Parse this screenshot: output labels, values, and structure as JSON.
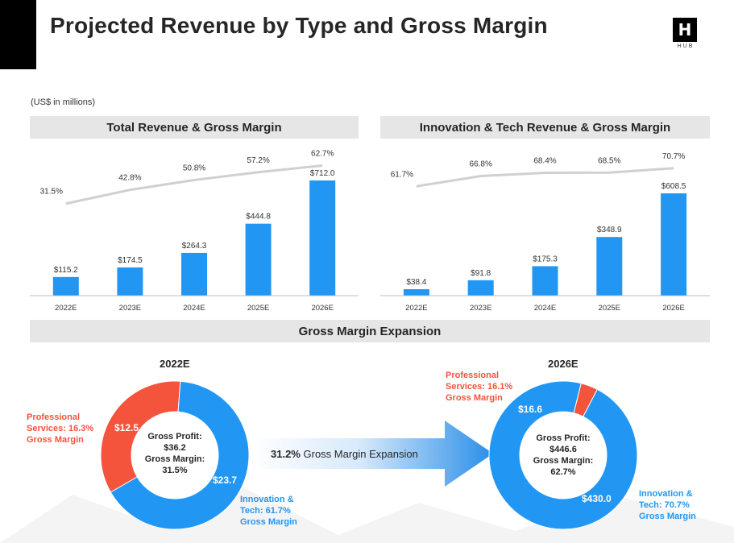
{
  "title": "Projected Revenue by Type and Gross Margin",
  "logo": {
    "mark": "H",
    "text": "HUB"
  },
  "units": "(US$ in millions)",
  "colors": {
    "bar": "#2196f3",
    "professional": "#f4533c",
    "tech": "#2196f3",
    "line": "#d0d0d0"
  },
  "gross_margin_header": "Gross Margin Expansion",
  "arrow": {
    "value": "31.2%",
    "text": "Gross Margin Expansion"
  },
  "chart_data": [
    {
      "type": "bar",
      "title": "Total Revenue & Gross Margin",
      "categories": [
        "2022E",
        "2023E",
        "2024E",
        "2025E",
        "2026E"
      ],
      "values": [
        115.2,
        174.5,
        264.3,
        444.8,
        712.0
      ],
      "value_labels": [
        "$115.2",
        "$174.5",
        "$264.3",
        "$444.8",
        "$712.0"
      ],
      "line_series": {
        "values": [
          31.5,
          42.8,
          50.8,
          57.2,
          62.7
        ],
        "labels": [
          "31.5%",
          "42.8%",
          "50.8%",
          "57.2%",
          "62.7%"
        ]
      },
      "grid": false
    },
    {
      "type": "bar",
      "title": "Innovation & Tech Revenue & Gross Margin",
      "categories": [
        "2022E",
        "2023E",
        "2024E",
        "2025E",
        "2026E"
      ],
      "values": [
        38.4,
        91.8,
        175.3,
        348.9,
        608.5
      ],
      "value_labels": [
        "$38.4",
        "$91.8",
        "$175.3",
        "$348.9",
        "$608.5"
      ],
      "line_series": {
        "values": [
          61.7,
          66.8,
          68.4,
          68.5,
          70.7
        ],
        "labels": [
          "61.7%",
          "66.8%",
          "68.4%",
          "68.5%",
          "70.7%"
        ]
      },
      "grid": false
    },
    {
      "type": "pie",
      "title": "2022E",
      "slices": [
        {
          "value": 12.5,
          "label": "$12.5",
          "color": "#f4533c"
        },
        {
          "value": 23.7,
          "label": "$23.7",
          "color": "#2196f3"
        }
      ],
      "center": [
        "Gross Profit:",
        "$36.2",
        "Gross Margin:",
        "31.5%"
      ],
      "professional_label": [
        "Professional",
        "Services: 16.3%",
        "Gross Margin"
      ],
      "tech_label": [
        "Innovation &",
        "Tech: 61.7%",
        "Gross Margin"
      ]
    },
    {
      "type": "pie",
      "title": "2026E",
      "slices": [
        {
          "value": 16.6,
          "label": "$16.6",
          "color": "#f4533c"
        },
        {
          "value": 430.0,
          "label": "$430.0",
          "color": "#2196f3"
        }
      ],
      "center": [
        "Gross Profit:",
        "$446.6",
        "Gross Margin:",
        "62.7%"
      ],
      "professional_label": [
        "Professional",
        "Services: 16.1%",
        "Gross Margin"
      ],
      "tech_label": [
        "Innovation &",
        "Tech: 70.7%",
        "Gross Margin"
      ]
    }
  ]
}
